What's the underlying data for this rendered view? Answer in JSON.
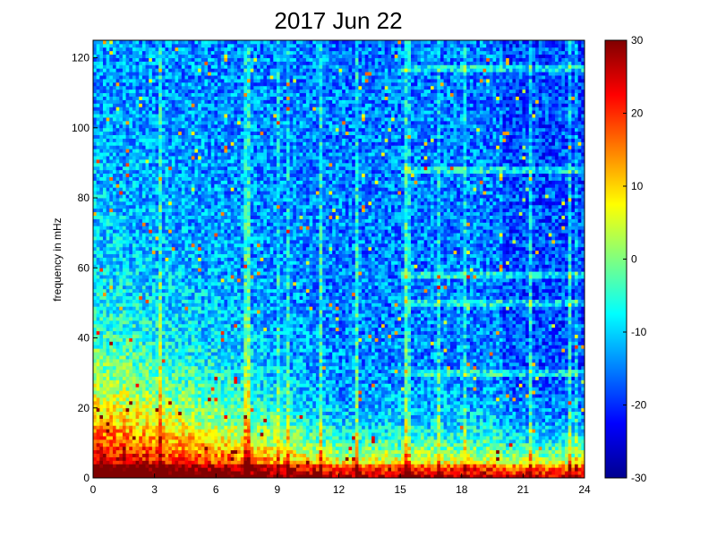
{
  "chart_data": {
    "type": "heatmap",
    "title": "2017 Jun 22",
    "xlabel": "",
    "ylabel": "frequency in mHz",
    "xlim": [
      0,
      24
    ],
    "ylim": [
      0,
      125
    ],
    "xticks": [
      0,
      3,
      6,
      9,
      12,
      15,
      18,
      21,
      24
    ],
    "yticks": [
      0,
      20,
      40,
      60,
      80,
      100,
      120
    ],
    "colorbar": {
      "range": [
        -30,
        30
      ],
      "ticks": [
        30,
        20,
        10,
        0,
        -10,
        -20,
        -30
      ],
      "colormap": "jet"
    },
    "grid": false,
    "description_values": {
      "low_frequency_power_db_approx": 25,
      "background_power_db_approx": -15,
      "noisy_after_hour": 20,
      "horizontal_lines_mhz": [
        30,
        50,
        58,
        88,
        117
      ]
    }
  }
}
